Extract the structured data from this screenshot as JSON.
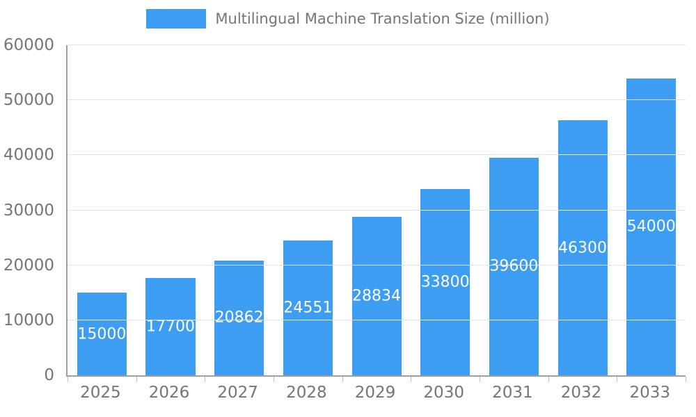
{
  "legend": {
    "label": "Multilingual Machine Translation Size (million)"
  },
  "colors": {
    "bar": "#3d9df3",
    "grid": "#e3e3e3",
    "axis": "#9e9e9e",
    "tick_text": "#757575",
    "value_label_text": "#ffffff",
    "background": "#ffffff"
  },
  "chart_data": {
    "type": "bar",
    "title": "Multilingual Machine Translation Size (million)",
    "categories": [
      "2025",
      "2026",
      "2027",
      "2028",
      "2029",
      "2030",
      "2031",
      "2032",
      "2033"
    ],
    "values": [
      15000,
      17700,
      20862,
      24551,
      28834,
      33800,
      39600,
      46300,
      54000
    ],
    "xlabel": "",
    "ylabel": "",
    "ylim": [
      0,
      60000
    ],
    "yticks": [
      0,
      10000,
      20000,
      30000,
      40000,
      50000,
      60000
    ],
    "grid": true,
    "legend_position": "top-center",
    "value_labels": "inside-center-white"
  }
}
